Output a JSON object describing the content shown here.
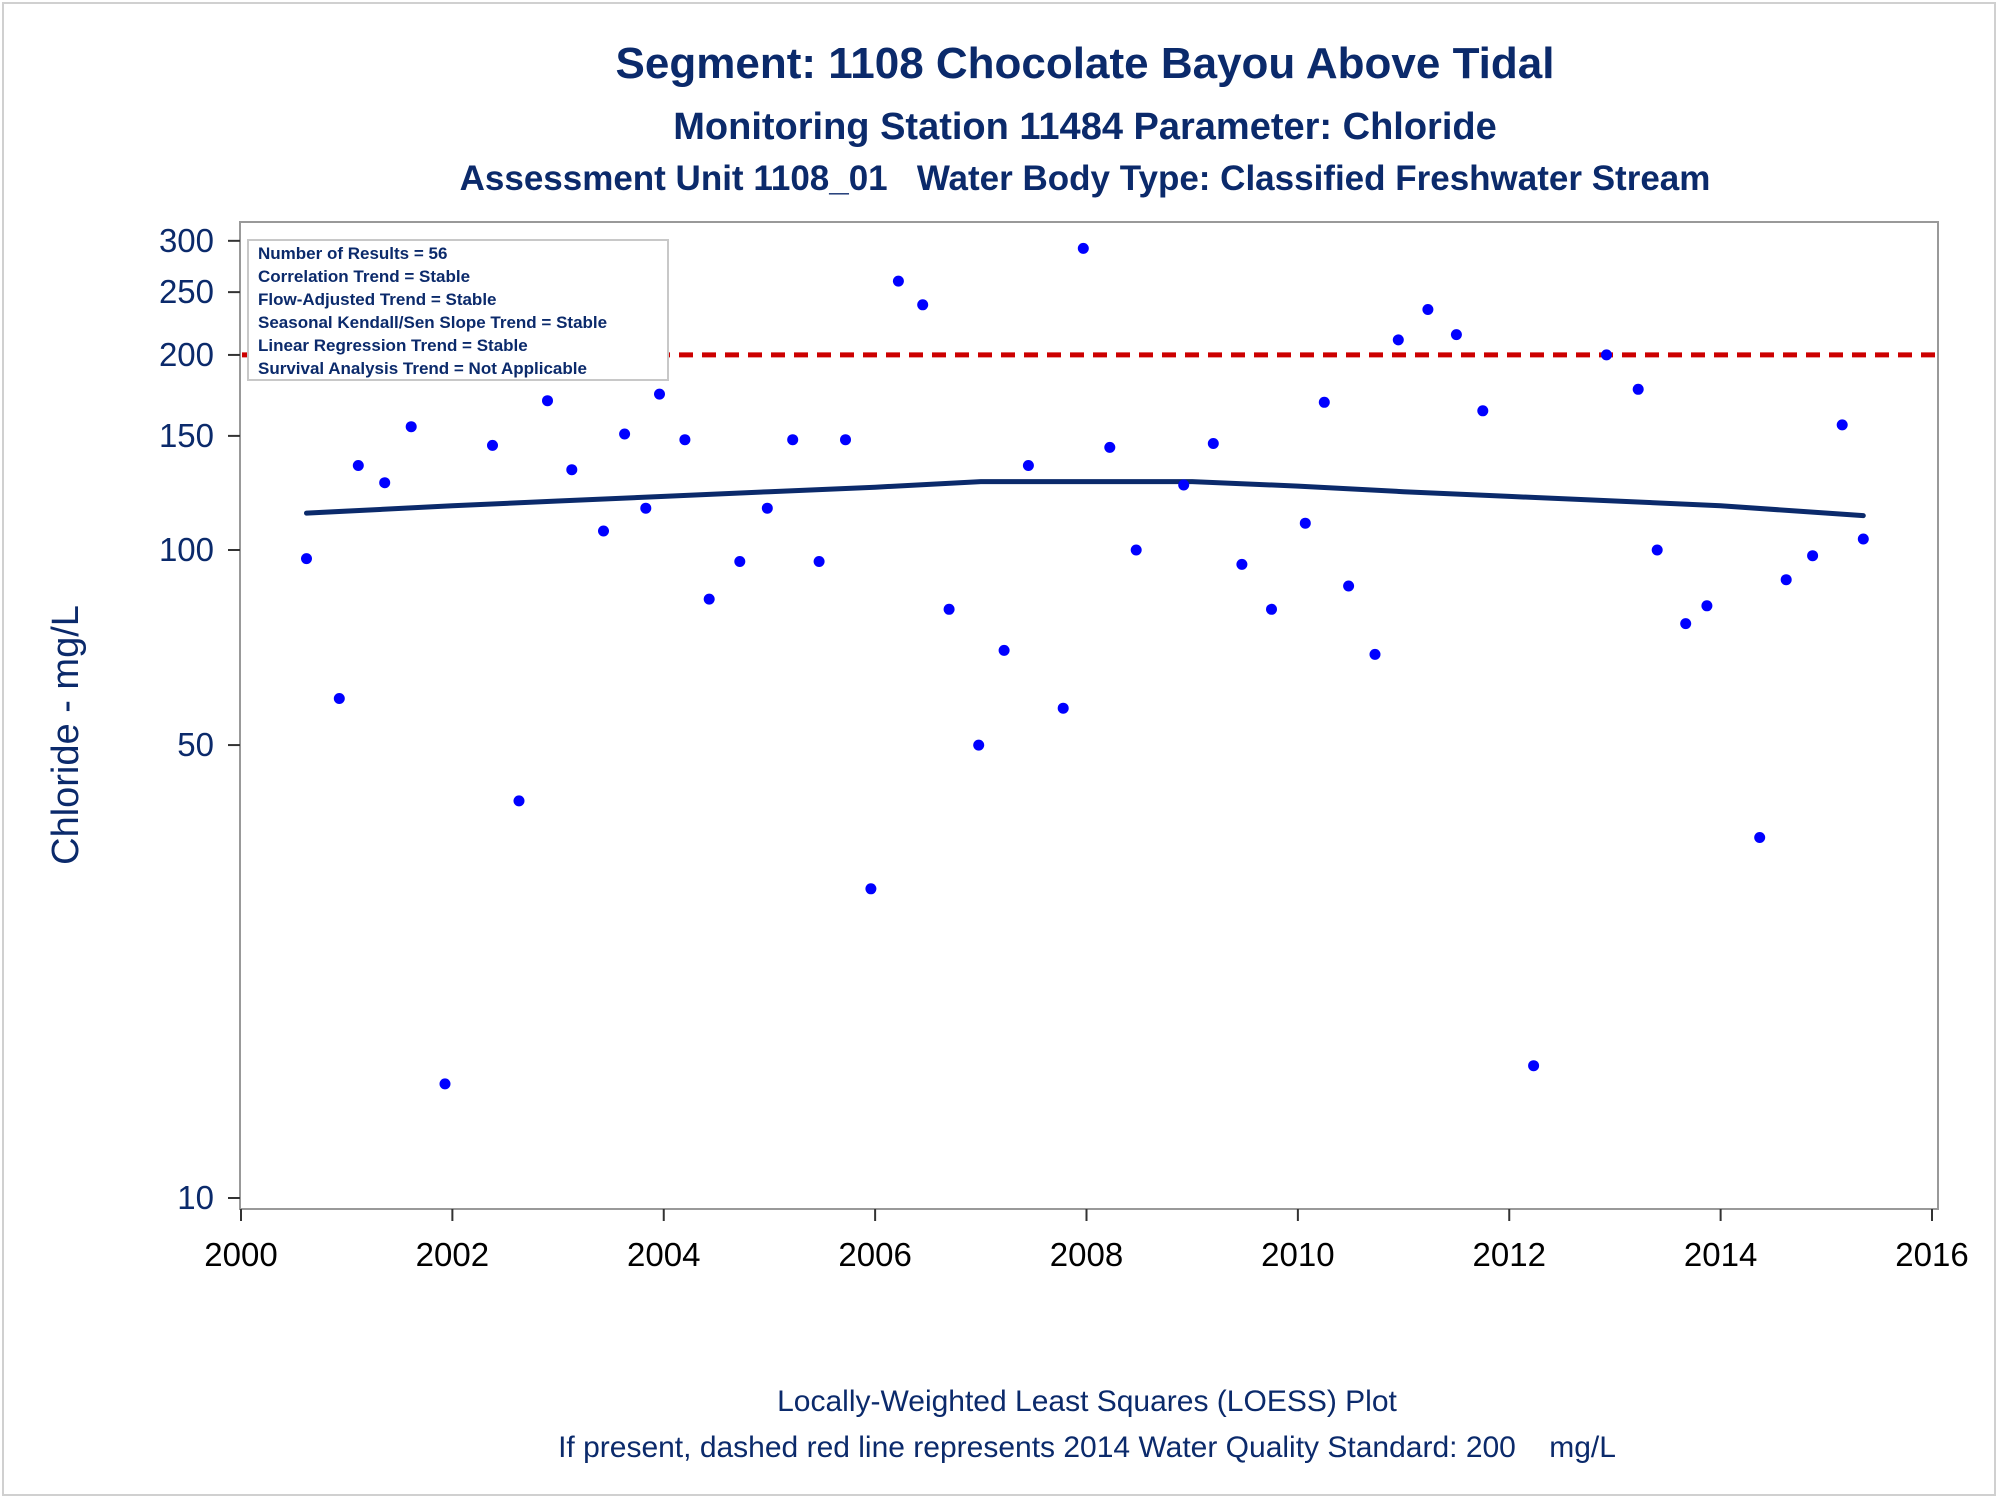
{
  "chart_data": {
    "type": "scatter",
    "title": "Segment: 1108  Chocolate Bayou Above Tidal",
    "subtitle": "Monitoring Station 11484 Parameter: Chloride",
    "subtitle2": "Assessment Unit 1108_01   Water Body Type: Classified Freshwater Stream",
    "ylabel": "Chloride - mg/L",
    "xlabel": "",
    "yscale": "log",
    "ylim": [
      10,
      320
    ],
    "xlim": [
      2000,
      2016
    ],
    "xticks": [
      "2000",
      "2002",
      "2004",
      "2006",
      "2008",
      "2010",
      "2012",
      "2014",
      "2016"
    ],
    "yticks": [
      "10",
      "50",
      "100",
      "150",
      "200",
      "250",
      "300"
    ],
    "grid": false,
    "legend_position": "top-left",
    "info_box": [
      "Number of Results = 56",
      "Correlation Trend = Stable",
      "Flow-Adjusted Trend = Stable",
      "Seasonal Kendall/Sen Slope Trend = Stable",
      "Linear Regression Trend = Stable",
      "Survival Analysis Trend = Not Applicable"
    ],
    "standard_line": {
      "value": 200,
      "color": "#cc0000",
      "style": "dashed"
    },
    "points": [
      {
        "x": 2000.62,
        "y": 97
      },
      {
        "x": 2000.93,
        "y": 59
      },
      {
        "x": 2001.11,
        "y": 135
      },
      {
        "x": 2001.36,
        "y": 127
      },
      {
        "x": 2001.61,
        "y": 155
      },
      {
        "x": 2001.93,
        "y": 15
      },
      {
        "x": 2002.11,
        "y": 200
      },
      {
        "x": 2002.38,
        "y": 145
      },
      {
        "x": 2002.63,
        "y": 41
      },
      {
        "x": 2002.9,
        "y": 170
      },
      {
        "x": 2003.13,
        "y": 133
      },
      {
        "x": 2003.43,
        "y": 107
      },
      {
        "x": 2003.63,
        "y": 151
      },
      {
        "x": 2003.83,
        "y": 116
      },
      {
        "x": 2003.96,
        "y": 174
      },
      {
        "x": 2004.2,
        "y": 148
      },
      {
        "x": 2004.43,
        "y": 84
      },
      {
        "x": 2004.72,
        "y": 96
      },
      {
        "x": 2004.98,
        "y": 116
      },
      {
        "x": 2005.22,
        "y": 148
      },
      {
        "x": 2005.47,
        "y": 96
      },
      {
        "x": 2005.72,
        "y": 148
      },
      {
        "x": 2005.96,
        "y": 30
      },
      {
        "x": 2006.22,
        "y": 260
      },
      {
        "x": 2006.45,
        "y": 239
      },
      {
        "x": 2006.7,
        "y": 81
      },
      {
        "x": 2006.98,
        "y": 50
      },
      {
        "x": 2007.22,
        "y": 70
      },
      {
        "x": 2007.45,
        "y": 135
      },
      {
        "x": 2007.78,
        "y": 57
      },
      {
        "x": 2007.97,
        "y": 292
      },
      {
        "x": 2008.22,
        "y": 144
      },
      {
        "x": 2008.47,
        "y": 100
      },
      {
        "x": 2008.92,
        "y": 126
      },
      {
        "x": 2009.2,
        "y": 146
      },
      {
        "x": 2009.47,
        "y": 95
      },
      {
        "x": 2009.75,
        "y": 81
      },
      {
        "x": 2010.07,
        "y": 110
      },
      {
        "x": 2010.25,
        "y": 169
      },
      {
        "x": 2010.48,
        "y": 88
      },
      {
        "x": 2010.73,
        "y": 69
      },
      {
        "x": 2010.95,
        "y": 211
      },
      {
        "x": 2011.23,
        "y": 235
      },
      {
        "x": 2011.5,
        "y": 215
      },
      {
        "x": 2011.75,
        "y": 164
      },
      {
        "x": 2012.23,
        "y": 16
      },
      {
        "x": 2012.92,
        "y": 200
      },
      {
        "x": 2013.22,
        "y": 177
      },
      {
        "x": 2013.4,
        "y": 100
      },
      {
        "x": 2013.67,
        "y": 77
      },
      {
        "x": 2013.87,
        "y": 82
      },
      {
        "x": 2014.37,
        "y": 36
      },
      {
        "x": 2014.62,
        "y": 90
      },
      {
        "x": 2014.87,
        "y": 98
      },
      {
        "x": 2015.15,
        "y": 156
      },
      {
        "x": 2015.35,
        "y": 104
      }
    ],
    "loess": [
      {
        "x": 2000.62,
        "y": 114
      },
      {
        "x": 2002,
        "y": 117
      },
      {
        "x": 2003,
        "y": 119
      },
      {
        "x": 2004,
        "y": 121
      },
      {
        "x": 2005,
        "y": 123
      },
      {
        "x": 2006,
        "y": 125
      },
      {
        "x": 2007,
        "y": 127.5
      },
      {
        "x": 2008,
        "y": 127.5
      },
      {
        "x": 2009,
        "y": 127.5
      },
      {
        "x": 2010,
        "y": 125.5
      },
      {
        "x": 2011,
        "y": 123
      },
      {
        "x": 2012,
        "y": 121
      },
      {
        "x": 2013,
        "y": 119
      },
      {
        "x": 2014,
        "y": 117
      },
      {
        "x": 2015.35,
        "y": 113
      }
    ],
    "point_color": "#0000ff",
    "loess_color": "#0b2a6b",
    "footnotes": [
      "Locally-Weighted Least Squares (LOESS) Plot",
      "If present, dashed red line represents 2014 Water Quality Standard: 200    mg/L"
    ]
  }
}
